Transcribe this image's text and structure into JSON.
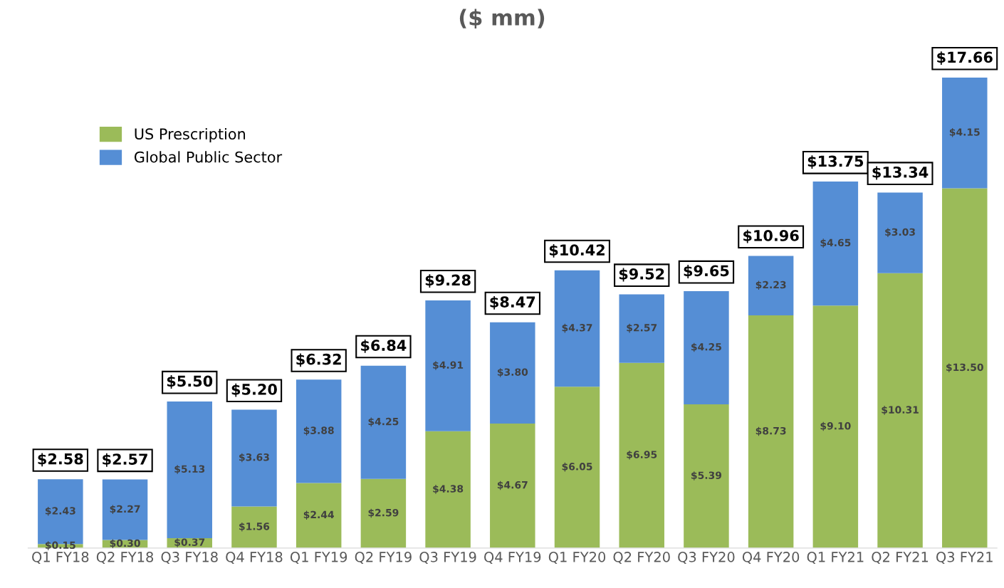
{
  "chart_data": {
    "type": "bar",
    "title": "($ mm)",
    "stacked": true,
    "grid": false,
    "legend": "top left",
    "categories": [
      "Q1 FY18",
      "Q2 FY18",
      "Q3 FY18",
      "Q4 FY18",
      "Q1 FY19",
      "Q2 FY19",
      "Q3 FY19",
      "Q4 FY19",
      "Q1 FY20",
      "Q2 FY20",
      "Q3 FY20",
      "Q4 FY20",
      "Q1 FY21",
      "Q2 FY21",
      "Q3 FY21"
    ],
    "series": [
      {
        "name": "US Prescription",
        "color": "#9bbb59",
        "values": [
          0.15,
          0.3,
          0.37,
          1.56,
          2.44,
          2.59,
          4.38,
          4.67,
          6.05,
          6.95,
          5.39,
          8.73,
          9.1,
          10.31,
          13.5
        ],
        "value_labels": [
          "$0.15",
          "$0.30",
          "$0.37",
          "$1.56",
          "$2.44",
          "$2.59",
          "$4.38",
          "$4.67",
          "$6.05",
          "$6.95",
          "$5.39",
          "$8.73",
          "$9.10",
          "$10.31",
          "$13.50"
        ]
      },
      {
        "name": "Global Public Sector",
        "color": "#558ed5",
        "values": [
          2.43,
          2.27,
          5.13,
          3.63,
          3.88,
          4.25,
          4.91,
          3.8,
          4.37,
          2.57,
          4.25,
          2.23,
          4.65,
          3.03,
          4.15
        ],
        "value_labels": [
          "$2.43",
          "$2.27",
          "$5.13",
          "$3.63",
          "$3.88",
          "$4.25",
          "$4.91",
          "$3.80",
          "$4.37",
          "$2.57",
          "$4.25",
          "$2.23",
          "$4.65",
          "$3.03",
          "$4.15"
        ]
      }
    ],
    "totals": [
      "$2.58",
      "$2.57",
      "$5.50",
      "$5.20",
      "$6.32",
      "$6.84",
      "$9.28",
      "$8.47",
      "$10.42",
      "$9.52",
      "$9.65",
      "$10.96",
      "$13.75",
      "$13.34",
      "$17.66"
    ]
  }
}
